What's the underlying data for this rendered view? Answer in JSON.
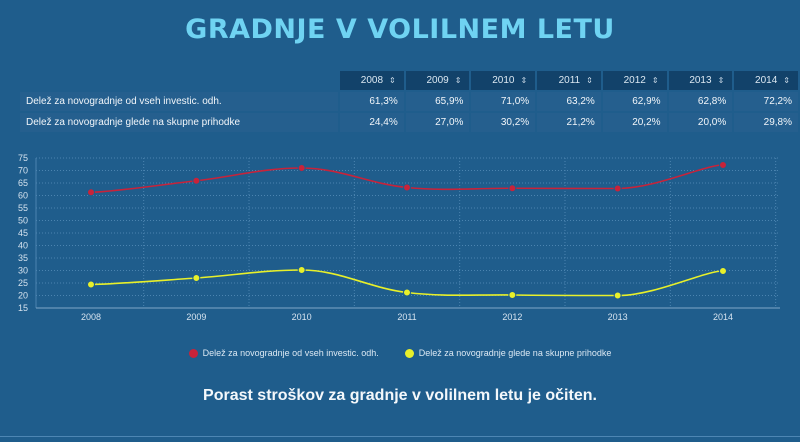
{
  "title": "GRADNJE V VOLILNEM LETU",
  "table": {
    "years": [
      "2008",
      "2009",
      "2010",
      "2011",
      "2012",
      "2013",
      "2014"
    ],
    "rows": [
      {
        "label": "Delež za novogradnje od vseh investic. odh.",
        "values": [
          "61,3%",
          "65,9%",
          "71,0%",
          "63,2%",
          "62,9%",
          "62,8%",
          "72,2%"
        ]
      },
      {
        "label": "Delež za novogradnje glede na skupne prihodke",
        "values": [
          "24,4%",
          "27,0%",
          "30,2%",
          "21,2%",
          "20,2%",
          "20,0%",
          "29,8%"
        ]
      }
    ]
  },
  "chart_data": {
    "type": "line",
    "x": [
      "2008",
      "2009",
      "2010",
      "2011",
      "2012",
      "2013",
      "2014"
    ],
    "ylim": [
      15,
      75
    ],
    "yticks": [
      15,
      20,
      25,
      30,
      35,
      40,
      45,
      50,
      55,
      60,
      65,
      70,
      75
    ],
    "grid": true,
    "legend": "bottom",
    "series": [
      {
        "name": "Delež za novogradnje od vseh investic. odh.",
        "color": "#c8233a",
        "values": [
          61.3,
          65.9,
          71.0,
          63.2,
          62.9,
          62.8,
          72.2
        ]
      },
      {
        "name": "Delež za novogradnje glede na skupne prihodke",
        "color": "#e8f02a",
        "values": [
          24.4,
          27.0,
          30.2,
          21.2,
          20.2,
          20.0,
          29.8
        ]
      }
    ]
  },
  "conclusion": "Porast stroškov za gradnje v volilnem letu je očiten."
}
